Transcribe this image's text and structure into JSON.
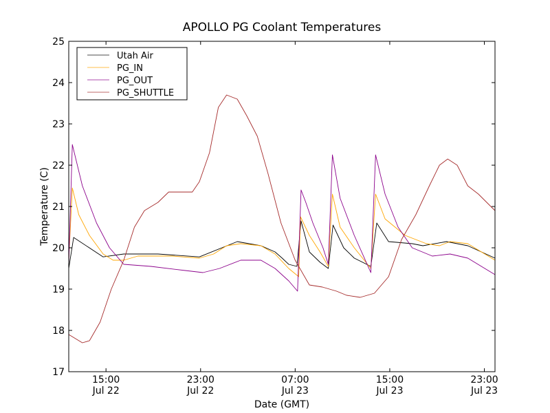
{
  "chart_data": {
    "type": "line",
    "title": "APOLLO PG Coolant Temperatures",
    "xlabel": "Date (GMT)",
    "ylabel": "Temperature (C)",
    "x_units": "hours since Jul 22 00:00 GMT",
    "xlim": [
      11.85,
      47.9
    ],
    "ylim": [
      17,
      25
    ],
    "yticks": [
      17,
      18,
      19,
      20,
      21,
      22,
      23,
      24,
      25
    ],
    "xticks": [
      {
        "value": 15,
        "time": "15:00",
        "date": "Jul 22"
      },
      {
        "value": 23,
        "time": "23:00",
        "date": "Jul 22"
      },
      {
        "value": 31,
        "time": "07:00",
        "date": "Jul 23"
      },
      {
        "value": 39,
        "time": "15:00",
        "date": "Jul 23"
      },
      {
        "value": 47,
        "time": "23:00",
        "date": "Jul 23"
      }
    ],
    "grid": false,
    "legend_position": "top-left",
    "series": [
      {
        "name": "Utah Air",
        "color": "#000000",
        "points": [
          [
            11.85,
            19.5
          ],
          [
            12.26,
            20.25
          ],
          [
            14.76,
            19.78
          ],
          [
            16.5,
            19.85
          ],
          [
            19.4,
            19.85
          ],
          [
            22.9,
            19.78
          ],
          [
            26.1,
            20.15
          ],
          [
            28.1,
            20.05
          ],
          [
            29.3,
            19.9
          ],
          [
            29.9,
            19.75
          ],
          [
            30.45,
            19.6
          ],
          [
            31.15,
            19.55
          ],
          [
            31.5,
            20.65
          ],
          [
            32.2,
            19.9
          ],
          [
            33.1,
            19.65
          ],
          [
            33.8,
            19.5
          ],
          [
            34.2,
            20.55
          ],
          [
            35.1,
            20.0
          ],
          [
            36.0,
            19.75
          ],
          [
            37.4,
            19.55
          ],
          [
            37.9,
            20.6
          ],
          [
            38.9,
            20.15
          ],
          [
            40.9,
            20.1
          ],
          [
            41.8,
            20.05
          ],
          [
            43.8,
            20.15
          ],
          [
            45.6,
            20.05
          ],
          [
            47.9,
            19.75
          ]
        ]
      },
      {
        "name": "PG_IN",
        "color": "#ffa500",
        "points": [
          [
            11.85,
            19.7
          ],
          [
            12.15,
            21.45
          ],
          [
            12.7,
            20.8
          ],
          [
            13.6,
            20.3
          ],
          [
            14.76,
            19.85
          ],
          [
            15.6,
            19.7
          ],
          [
            16.5,
            19.7
          ],
          [
            17.7,
            19.8
          ],
          [
            20.6,
            19.8
          ],
          [
            22.9,
            19.75
          ],
          [
            24.1,
            19.85
          ],
          [
            25.2,
            20.05
          ],
          [
            26.4,
            20.1
          ],
          [
            28.1,
            20.05
          ],
          [
            29.3,
            19.85
          ],
          [
            30.45,
            19.5
          ],
          [
            31.3,
            19.3
          ],
          [
            31.45,
            20.75
          ],
          [
            32.2,
            20.3
          ],
          [
            33.1,
            19.9
          ],
          [
            33.8,
            19.55
          ],
          [
            34.15,
            21.3
          ],
          [
            34.8,
            20.5
          ],
          [
            36.0,
            20.0
          ],
          [
            37.4,
            19.5
          ],
          [
            37.8,
            21.3
          ],
          [
            38.6,
            20.7
          ],
          [
            40.3,
            20.3
          ],
          [
            42.1,
            20.1
          ],
          [
            43.2,
            20.05
          ],
          [
            44.1,
            20.15
          ],
          [
            45.6,
            20.1
          ],
          [
            47.9,
            19.7
          ]
        ]
      },
      {
        "name": "PG_OUT",
        "color": "#8b008b",
        "points": [
          [
            11.85,
            19.6
          ],
          [
            12.15,
            22.5
          ],
          [
            13.0,
            21.5
          ],
          [
            14.2,
            20.6
          ],
          [
            15.3,
            20.0
          ],
          [
            16.5,
            19.6
          ],
          [
            18.8,
            19.55
          ],
          [
            21.7,
            19.45
          ],
          [
            23.2,
            19.4
          ],
          [
            24.6,
            19.5
          ],
          [
            26.4,
            19.7
          ],
          [
            28.1,
            19.7
          ],
          [
            29.3,
            19.5
          ],
          [
            30.45,
            19.2
          ],
          [
            31.2,
            18.95
          ],
          [
            31.5,
            21.4
          ],
          [
            31.9,
            21.1
          ],
          [
            32.5,
            20.6
          ],
          [
            33.35,
            20.0
          ],
          [
            33.8,
            19.6
          ],
          [
            34.15,
            22.25
          ],
          [
            34.8,
            21.2
          ],
          [
            36.0,
            20.3
          ],
          [
            37.4,
            19.4
          ],
          [
            37.8,
            22.25
          ],
          [
            38.6,
            21.3
          ],
          [
            39.7,
            20.5
          ],
          [
            40.9,
            20.0
          ],
          [
            42.6,
            19.8
          ],
          [
            44.1,
            19.85
          ],
          [
            45.6,
            19.75
          ],
          [
            47.9,
            19.35
          ]
        ]
      },
      {
        "name": "PG_SHUTTLE",
        "color": "#a52a2a",
        "points": [
          [
            11.85,
            17.9
          ],
          [
            13.0,
            17.7
          ],
          [
            13.6,
            17.75
          ],
          [
            14.5,
            18.2
          ],
          [
            15.45,
            19.0
          ],
          [
            16.5,
            19.7
          ],
          [
            17.4,
            20.5
          ],
          [
            18.25,
            20.9
          ],
          [
            19.4,
            21.1
          ],
          [
            20.3,
            21.35
          ],
          [
            22.3,
            21.35
          ],
          [
            22.9,
            21.6
          ],
          [
            23.75,
            22.3
          ],
          [
            24.5,
            23.4
          ],
          [
            25.2,
            23.7
          ],
          [
            26.1,
            23.6
          ],
          [
            26.9,
            23.2
          ],
          [
            27.8,
            22.7
          ],
          [
            28.7,
            21.8
          ],
          [
            29.8,
            20.6
          ],
          [
            31.0,
            19.7
          ],
          [
            32.2,
            19.1
          ],
          [
            33.3,
            19.05
          ],
          [
            34.5,
            18.95
          ],
          [
            35.35,
            18.85
          ],
          [
            36.5,
            18.8
          ],
          [
            37.7,
            18.9
          ],
          [
            38.9,
            19.3
          ],
          [
            40.0,
            20.2
          ],
          [
            41.2,
            20.8
          ],
          [
            42.35,
            21.5
          ],
          [
            43.2,
            22.0
          ],
          [
            43.9,
            22.15
          ],
          [
            44.7,
            22.0
          ],
          [
            45.6,
            21.5
          ],
          [
            46.5,
            21.3
          ],
          [
            47.9,
            20.9
          ]
        ]
      }
    ]
  }
}
